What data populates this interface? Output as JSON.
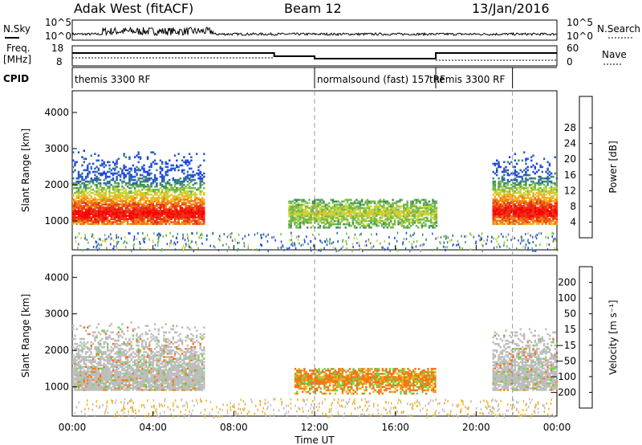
{
  "header": {
    "station": "Adak West (fitACF)",
    "beam": "Beam 12",
    "date": "13/Jan/2016"
  },
  "side_labels": {
    "nsky": "N.Sky",
    "nsearch": "N.Search",
    "freq_line1": "Freq.",
    "freq_line2": "[MHz]",
    "nave": "Nave",
    "cpid": "CPID"
  },
  "noise_axis": {
    "left_top": "10^5",
    "left_bottom": "10^0",
    "right_top": "10^5",
    "right_bottom": "10^0"
  },
  "freq_axis": {
    "left": [
      "18",
      "8"
    ],
    "right": [
      "60",
      "0"
    ]
  },
  "cpid_labels": [
    {
      "text": "themis 3300 RF",
      "start_hour": 0
    },
    {
      "text": "normalsound (fast) 157 RF",
      "start_hour": 12
    },
    {
      "text": "themis 3300 RF",
      "start_hour": 18.0
    }
  ],
  "chart_data": [
    {
      "type": "heatmap",
      "panel": "power",
      "ylabel": "Slant Range [km]",
      "xlabel": "",
      "ylim": [
        200,
        4600
      ],
      "yticks": [
        "1000",
        "2000",
        "3000",
        "4000"
      ],
      "colorbar_label": "Power [dB]",
      "colorbar_ticks": [
        "4",
        "8",
        "12",
        "16",
        "20",
        "24",
        "28"
      ],
      "colors": [
        "#1a3cff",
        "#2a5cbf",
        "#3f8a6a",
        "#6fb84a",
        "#c8d43a",
        "#f5b21e",
        "#f07814",
        "#e8321a",
        "#ff0000"
      ],
      "regions": [
        {
          "t0": 0.0,
          "t1": 6.5,
          "r0": 900,
          "r1": 3000,
          "core_range": 1200,
          "core_level": 28
        },
        {
          "t0": 10.7,
          "t1": 18.0,
          "r0": 800,
          "r1": 1600,
          "core_range": 1200,
          "core_level": 14
        },
        {
          "t0": 20.8,
          "t1": 24.0,
          "r0": 900,
          "r1": 2900,
          "core_range": 1250,
          "core_level": 28
        }
      ]
    },
    {
      "type": "heatmap",
      "panel": "velocity",
      "ylabel": "Slant Range [km]",
      "xlabel": "Time UT",
      "ylim": [
        200,
        4600
      ],
      "yticks": [
        "1000",
        "2000",
        "3000",
        "4000"
      ],
      "xticks": [
        "00:00",
        "04:00",
        "08:00",
        "12:00",
        "16:00",
        "20:00",
        "00:00"
      ],
      "colorbar_label": "Velocity [m s⁻¹]",
      "colorbar_ticks": [
        "200",
        "100",
        "50",
        "15",
        "−15",
        "−50",
        "−100",
        "−200"
      ],
      "colors": [
        "#1a2fb0",
        "#2a5cbf",
        "#2e8a3a",
        "#6fd44a",
        "#bdbdbd",
        "#f5b21e",
        "#f07814",
        "#e8501a",
        "#e80000"
      ],
      "regions": [
        {
          "t0": 0.0,
          "t1": 6.5,
          "r0": 900,
          "r1": 2800,
          "core_range": 1200,
          "core_level": 0
        },
        {
          "t0": 11.0,
          "t1": 18.0,
          "r0": 800,
          "r1": 1500,
          "core_range": 1200,
          "core_level": -50
        },
        {
          "t0": 20.8,
          "t1": 24.0,
          "r0": 900,
          "r1": 2600,
          "core_range": 1250,
          "core_level": 0
        }
      ]
    }
  ]
}
